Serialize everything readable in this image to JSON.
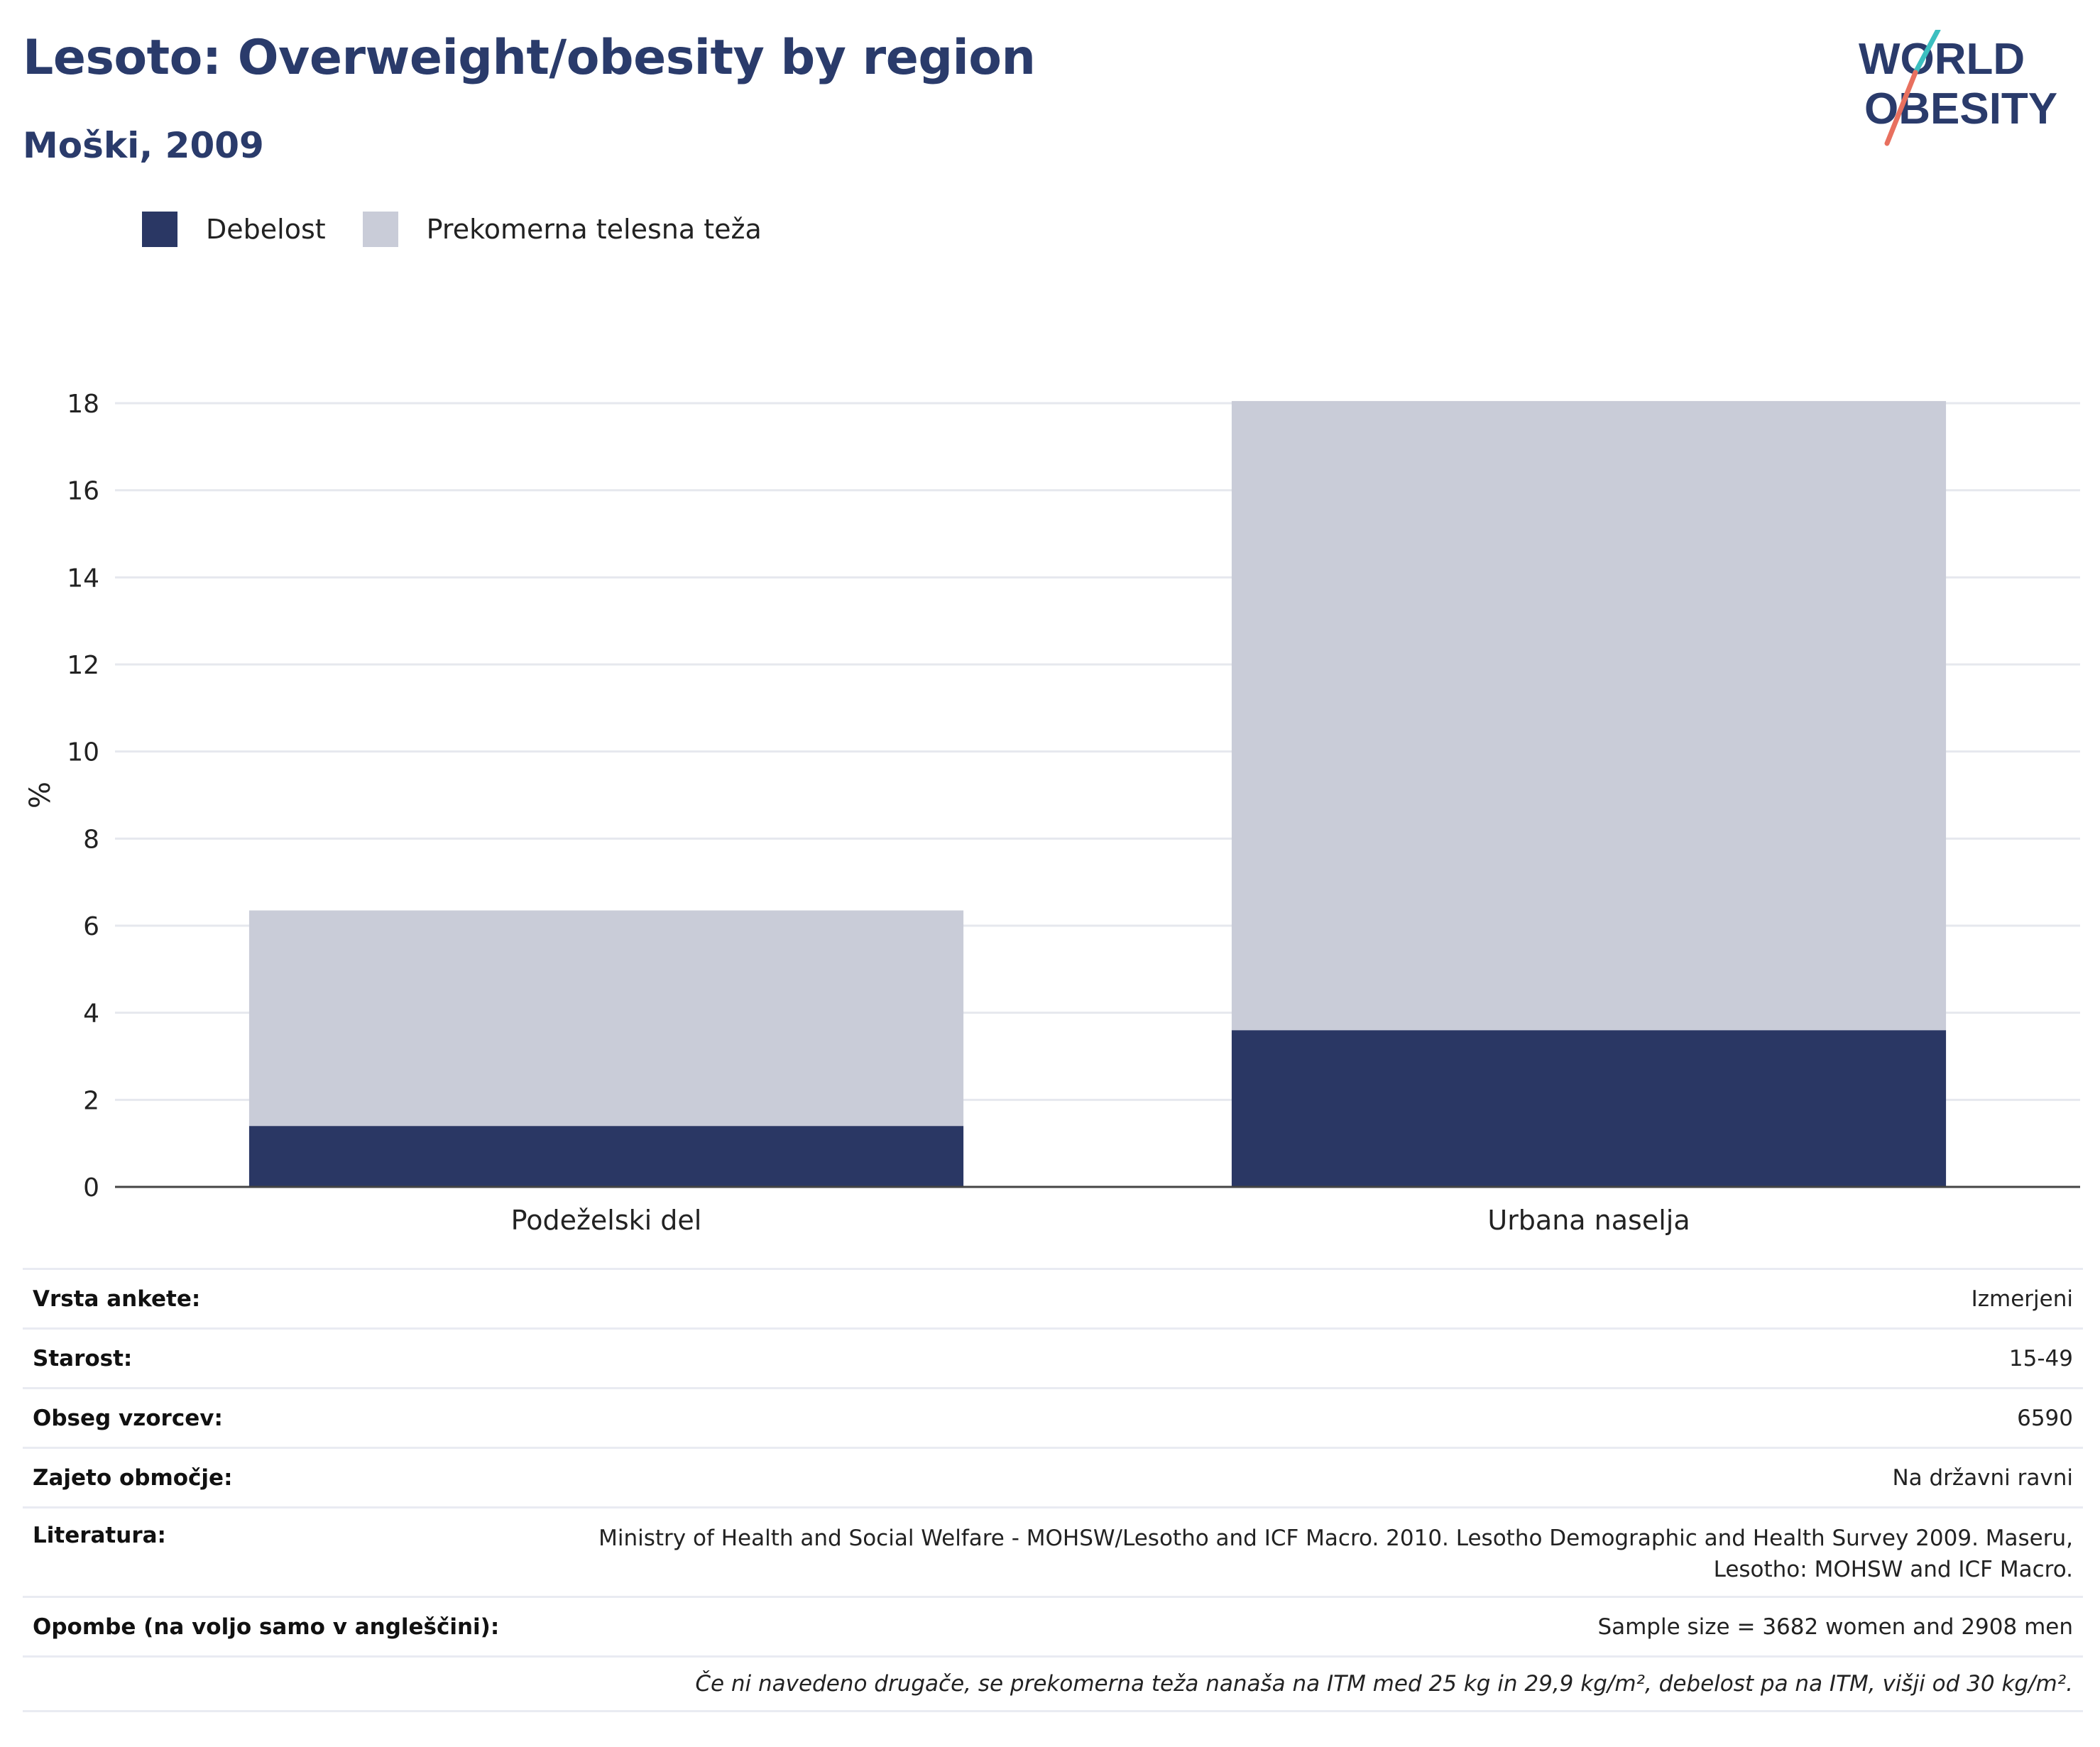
{
  "header": {
    "title": "Lesoto: Overweight/obesity by region",
    "subtitle": "Moški, 2009"
  },
  "logo": {
    "line1": "WORLD",
    "line2": "OBESITY",
    "colors": {
      "text": "#2a3b6b",
      "slash_top": "#3cbfc0",
      "slash_bottom": "#e8705f"
    }
  },
  "legend": [
    {
      "label": "Debelost",
      "color": "#2a3764"
    },
    {
      "label": "Prekomerna telesna teža",
      "color": "#c9ccd8"
    }
  ],
  "chart_data": {
    "type": "bar",
    "stacked": true,
    "categories": [
      "Podeželski del",
      "Urbana naselja"
    ],
    "series": [
      {
        "name": "Debelost",
        "values": [
          1.4,
          3.6
        ],
        "color": "#2a3764"
      },
      {
        "name": "Prekomerna telesna teža",
        "values": [
          4.95,
          14.45
        ],
        "color": "#c9ccd8"
      }
    ],
    "ylabel": "%",
    "ylim": [
      0,
      18
    ],
    "yticks": [
      0,
      2,
      4,
      6,
      8,
      10,
      12,
      14,
      16,
      18
    ],
    "grid": true,
    "legend_position": "top-left"
  },
  "info": {
    "rows": [
      {
        "key": "Vrsta ankete:",
        "value": "Izmerjeni"
      },
      {
        "key": "Starost:",
        "value": "15-49"
      },
      {
        "key": "Obseg vzorcev:",
        "value": "6590"
      },
      {
        "key": "Zajeto območje:",
        "value": "Na državni ravni"
      },
      {
        "key": "Literatura:",
        "value": "Ministry of Health and Social Welfare - MOHSW/Lesotho and ICF Macro. 2010. Lesotho Demographic and Health Survey 2009. Maseru, Lesotho: MOHSW and ICF Macro."
      },
      {
        "key": "Opombe (na voljo samo v angleščini):",
        "value": "Sample size = 3682 women and 2908 men"
      }
    ],
    "note": "Če ni navedeno drugače, se prekomerna teža nanaša na ITM med 25 kg in 29,9 kg/m², debelost pa na ITM, višji od 30 kg/m²."
  }
}
